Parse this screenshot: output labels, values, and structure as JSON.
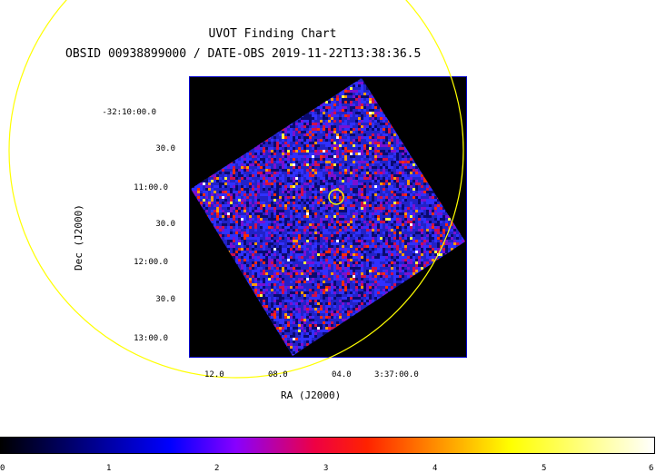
{
  "chart_data": {
    "type": "heatmap",
    "title": "UVOT Finding Chart",
    "subtitle": "OBSID 00938899000 / DATE-OBS 2019-11-22T13:38:36.5",
    "xlabel": "RA (J2000)",
    "ylabel": "Dec (J2000)",
    "x_ticks": [
      "12.0",
      "08.0",
      "04.0",
      "3:37:00.0"
    ],
    "y_ticks": [
      "-32:10:00.0",
      "30.0",
      "11:00.0",
      "30.0",
      "12:00.0",
      "30.0",
      "13:00.0"
    ],
    "colorbar": {
      "ticks": [
        "0",
        "1",
        "2",
        "3",
        "4",
        "5",
        "6"
      ],
      "range": [
        0,
        6
      ],
      "colormap": [
        "#000000",
        "#0000ff",
        "#ff0000",
        "#ffff00",
        "#ffffff"
      ]
    },
    "overlay_color": "#ffff00",
    "frame_color": "#0000cc"
  }
}
